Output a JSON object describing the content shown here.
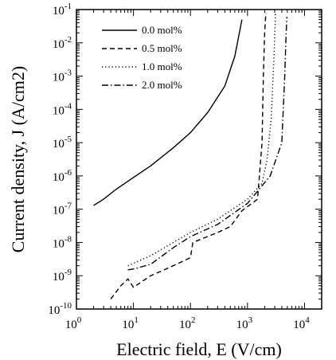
{
  "chart_data": {
    "type": "line",
    "xlabel": "Electric field, E (V/cm)",
    "ylabel": "Current density, J (A/cm2)",
    "xscale": "log",
    "yscale": "log",
    "xlim": [
      1,
      20000
    ],
    "ylim": [
      1e-10,
      0.1
    ],
    "x_ticks": [
      1,
      10,
      100,
      1000,
      10000
    ],
    "y_ticks": [
      1e-10,
      1e-09,
      1e-08,
      1e-07,
      1e-06,
      1e-05,
      0.0001,
      0.001,
      0.01,
      0.1
    ],
    "legend_position": "top-left",
    "series": [
      {
        "name": "0.0 mol%",
        "line_style": "solid",
        "x": [
          2,
          3,
          5,
          10,
          20,
          50,
          100,
          200,
          400,
          600,
          800
        ],
        "y": [
          1.3e-07,
          2e-07,
          4e-07,
          9e-07,
          2e-06,
          7e-06,
          2e-05,
          8e-05,
          0.0005,
          0.004,
          0.05
        ]
      },
      {
        "name": "0.5 mol%",
        "line_style": "dashed",
        "x": [
          4,
          6,
          8,
          10,
          20,
          50,
          100,
          110,
          300,
          500,
          800,
          1500,
          1800,
          1900,
          2000,
          2100
        ],
        "y": [
          2e-10,
          5e-10,
          8e-10,
          4.5e-10,
          1e-09,
          2e-09,
          3.5e-09,
          1e-08,
          2e-08,
          3e-08,
          9e-08,
          2e-07,
          1e-05,
          0.001,
          0.02,
          0.08
        ]
      },
      {
        "name": "1.0 mol%",
        "line_style": "dotted",
        "x": [
          8,
          20,
          50,
          100,
          300,
          1000,
          1800,
          2200,
          2600,
          2900,
          3100
        ],
        "y": [
          2e-09,
          4e-09,
          1e-08,
          2e-08,
          5e-08,
          2e-07,
          6e-07,
          3e-06,
          5e-05,
          0.003,
          0.08
        ]
      },
      {
        "name": "2.0 mol%",
        "line_style": "dash-dot",
        "x": [
          8,
          10,
          20,
          50,
          100,
          300,
          1000,
          2500,
          4000,
          4500,
          4700,
          4900
        ],
        "y": [
          1.5e-09,
          1.6e-09,
          2.2e-09,
          7e-09,
          1.5e-08,
          3.5e-08,
          1.5e-07,
          1e-06,
          1e-05,
          0.001,
          0.01,
          0.06
        ]
      }
    ]
  }
}
